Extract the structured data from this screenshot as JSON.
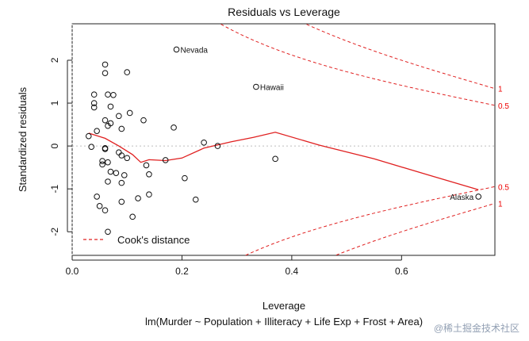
{
  "chart_data": {
    "type": "scatter",
    "title": "Residuals vs Leverage",
    "xlabel": "Leverage",
    "ylabel": "Standardized residuals",
    "subtitle": "lm(Murder ~ Population + Illiteracy + Life Exp + Frost + Area)",
    "xlim": [
      0,
      0.77
    ],
    "ylim": [
      -2.55,
      2.85
    ],
    "x_ticks": [
      0.0,
      0.2,
      0.4,
      0.6
    ],
    "x_tick_labels": [
      "0.0",
      "0.2",
      "0.4",
      "0.6"
    ],
    "y_ticks": [
      -2,
      -1,
      0,
      1,
      2
    ],
    "y_tick_labels": [
      "-2",
      "-1",
      "0",
      "1",
      "2"
    ],
    "points": [
      {
        "x": 0.06,
        "y": 1.9
      },
      {
        "x": 0.1,
        "y": 1.72
      },
      {
        "x": 0.06,
        "y": 1.7
      },
      {
        "x": 0.19,
        "y": 2.25,
        "label": "Nevada"
      },
      {
        "x": 0.335,
        "y": 1.38,
        "label": "Hawaii"
      },
      {
        "x": 0.74,
        "y": -1.18,
        "label": "Alaska"
      },
      {
        "x": 0.04,
        "y": 1.2
      },
      {
        "x": 0.065,
        "y": 1.2
      },
      {
        "x": 0.075,
        "y": 1.19
      },
      {
        "x": 0.04,
        "y": 1.0
      },
      {
        "x": 0.04,
        "y": 0.9
      },
      {
        "x": 0.07,
        "y": 0.92
      },
      {
        "x": 0.105,
        "y": 0.77
      },
      {
        "x": 0.085,
        "y": 0.7
      },
      {
        "x": 0.06,
        "y": 0.6
      },
      {
        "x": 0.07,
        "y": 0.53
      },
      {
        "x": 0.065,
        "y": 0.47
      },
      {
        "x": 0.13,
        "y": 0.6
      },
      {
        "x": 0.185,
        "y": 0.43
      },
      {
        "x": 0.09,
        "y": 0.4
      },
      {
        "x": 0.045,
        "y": 0.35
      },
      {
        "x": 0.03,
        "y": 0.23
      },
      {
        "x": 0.035,
        "y": -0.02
      },
      {
        "x": 0.06,
        "y": -0.05
      },
      {
        "x": 0.06,
        "y": -0.07
      },
      {
        "x": 0.085,
        "y": -0.15
      },
      {
        "x": 0.09,
        "y": -0.22
      },
      {
        "x": 0.1,
        "y": -0.28
      },
      {
        "x": 0.055,
        "y": -0.35
      },
      {
        "x": 0.065,
        "y": -0.38
      },
      {
        "x": 0.055,
        "y": -0.43
      },
      {
        "x": 0.135,
        "y": -0.45
      },
      {
        "x": 0.17,
        "y": -0.33
      },
      {
        "x": 0.07,
        "y": -0.6
      },
      {
        "x": 0.08,
        "y": -0.63
      },
      {
        "x": 0.095,
        "y": -0.68
      },
      {
        "x": 0.14,
        "y": -0.66
      },
      {
        "x": 0.205,
        "y": -0.75
      },
      {
        "x": 0.065,
        "y": -0.83
      },
      {
        "x": 0.09,
        "y": -0.86
      },
      {
        "x": 0.24,
        "y": 0.08
      },
      {
        "x": 0.265,
        "y": 0.0
      },
      {
        "x": 0.37,
        "y": -0.3
      },
      {
        "x": 0.045,
        "y": -1.18
      },
      {
        "x": 0.14,
        "y": -1.13
      },
      {
        "x": 0.12,
        "y": -1.22
      },
      {
        "x": 0.225,
        "y": -1.25
      },
      {
        "x": 0.09,
        "y": -1.3
      },
      {
        "x": 0.05,
        "y": -1.4
      },
      {
        "x": 0.06,
        "y": -1.5
      },
      {
        "x": 0.11,
        "y": -1.65
      },
      {
        "x": 0.065,
        "y": -2.0
      }
    ],
    "smooth_line": {
      "name": "loess",
      "x": [
        0.03,
        0.06,
        0.085,
        0.11,
        0.125,
        0.14,
        0.17,
        0.2,
        0.24,
        0.29,
        0.33,
        0.37,
        0.45,
        0.55,
        0.65,
        0.74
      ],
      "y": [
        0.3,
        0.18,
        0.0,
        -0.2,
        -0.38,
        -0.32,
        -0.34,
        -0.28,
        -0.05,
        0.1,
        0.2,
        0.32,
        0.02,
        -0.3,
        -0.68,
        -1.02
      ]
    },
    "cook_contours": [
      {
        "level": 0.5,
        "label": "0.5",
        "sign": 1
      },
      {
        "level": 1,
        "label": "1",
        "sign": 1
      },
      {
        "level": 0.5,
        "label": "0.5",
        "sign": -1
      },
      {
        "level": 1,
        "label": "1",
        "sign": -1
      }
    ],
    "num_params": 6,
    "legend": {
      "label": "Cook's distance",
      "position": "bottom-left"
    }
  },
  "watermark": "@稀土掘金技术社区",
  "colors": {
    "points": "#111111",
    "smooth": "#e02020",
    "cook": "#e02020",
    "grid": "#999999"
  }
}
